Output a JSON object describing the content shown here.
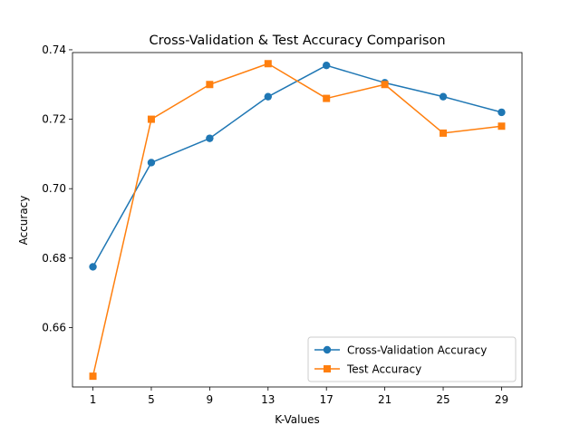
{
  "chart_data": {
    "type": "line",
    "title": "Cross-Validation & Test Accuracy Comparison",
    "xlabel": "K-Values",
    "ylabel": "Accuracy",
    "x": [
      1,
      5,
      9,
      13,
      17,
      21,
      25,
      29
    ],
    "xticks": [
      "1",
      "5",
      "9",
      "13",
      "17",
      "21",
      "25",
      "29"
    ],
    "yticks": [
      "0.66",
      "0.68",
      "0.70",
      "0.72",
      "0.74"
    ],
    "xlim": [
      -0.4,
      30.4
    ],
    "ylim": [
      0.6429,
      0.7392
    ],
    "legend_position": "lower right",
    "grid": false,
    "series": [
      {
        "name": "Cross-Validation Accuracy",
        "values": [
          0.6775,
          0.7075,
          0.7145,
          0.7265,
          0.7355,
          0.7305,
          0.7265,
          0.722
        ],
        "color": "#1f77b4",
        "marker": "circle"
      },
      {
        "name": "Test Accuracy",
        "values": [
          0.646,
          0.72,
          0.73,
          0.736,
          0.726,
          0.73,
          0.716,
          0.718
        ],
        "color": "#ff7f0e",
        "marker": "square"
      }
    ]
  }
}
